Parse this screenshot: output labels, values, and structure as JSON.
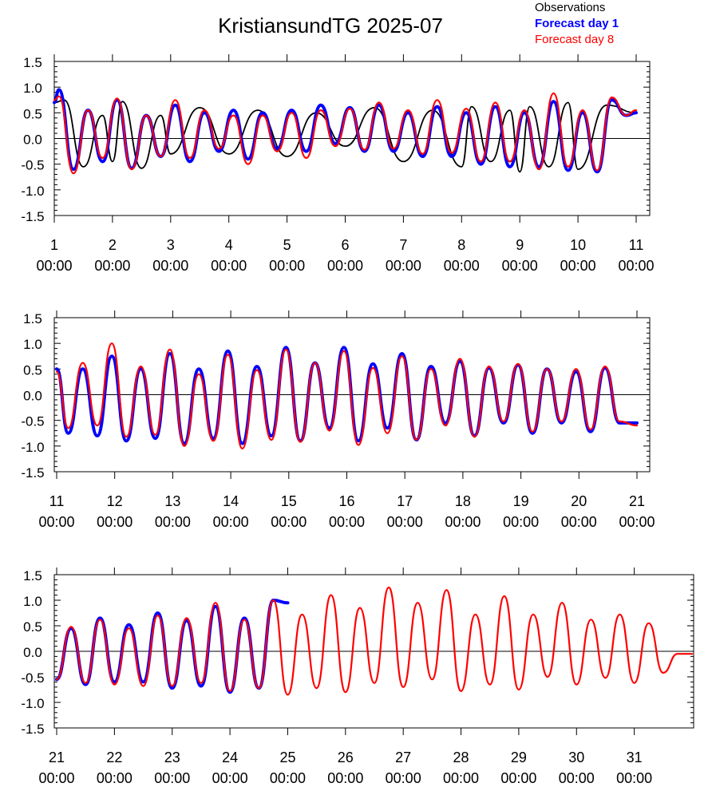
{
  "title": "KristiansundTG 2025-07",
  "legend": [
    {
      "label": "Observations",
      "color": "#000000",
      "bold": false
    },
    {
      "label": "Forecast day 1",
      "color": "#0000ff",
      "bold": true
    },
    {
      "label": "Forecast day 8",
      "color": "#ff0000",
      "bold": false
    }
  ],
  "time_label": "00:00",
  "chart_data": [
    {
      "type": "line",
      "title": "",
      "xlabel": "",
      "ylabel": "",
      "xlim": [
        1,
        11
      ],
      "ylim": [
        -1.5,
        1.5
      ],
      "y_ticks": [
        "1.5",
        "1.0",
        "0.5",
        "0.0",
        "-0.5",
        "-1.0",
        "-1.5"
      ],
      "x_tick_days": [
        "1",
        "2",
        "3",
        "4",
        "5",
        "6",
        "7",
        "8",
        "9",
        "10",
        "11"
      ],
      "zero_line": true,
      "series": [
        {
          "name": "Observations",
          "color": "#000000",
          "x": [
            1.0,
            1.17,
            1.5,
            1.83,
            2.0,
            2.17,
            2.5,
            2.83,
            3.0,
            3.5,
            4.0,
            4.5,
            5.0,
            5.5,
            6.0,
            6.5,
            7.0,
            7.5,
            8.0,
            8.17,
            8.5,
            8.83,
            9.0,
            9.17,
            9.5,
            9.83,
            10.0,
            10.5,
            11.0
          ],
          "y": [
            0.7,
            0.75,
            -0.55,
            0.45,
            -0.45,
            0.72,
            -0.58,
            0.45,
            -0.3,
            0.6,
            -0.3,
            0.55,
            -0.35,
            0.5,
            -0.15,
            0.6,
            -0.45,
            0.55,
            -0.55,
            0.62,
            -0.45,
            0.55,
            -0.65,
            0.62,
            -0.55,
            0.7,
            -0.6,
            0.65,
            0.5
          ]
        },
        {
          "name": "Forecast day 1",
          "color": "#0000ff",
          "x": [
            1.0,
            1.08,
            1.33,
            1.58,
            1.83,
            2.08,
            2.33,
            2.58,
            2.83,
            3.08,
            3.33,
            3.58,
            3.83,
            4.08,
            4.33,
            4.58,
            4.83,
            5.08,
            5.33,
            5.58,
            5.83,
            6.08,
            6.33,
            6.58,
            6.83,
            7.08,
            7.33,
            7.58,
            7.83,
            8.08,
            8.33,
            8.58,
            8.83,
            9.08,
            9.33,
            9.58,
            9.83,
            10.08,
            10.33,
            10.58,
            10.83,
            11.0
          ],
          "y": [
            0.7,
            0.95,
            -0.6,
            0.55,
            -0.45,
            0.75,
            -0.58,
            0.45,
            -0.35,
            0.65,
            -0.45,
            0.5,
            -0.25,
            0.55,
            -0.4,
            0.5,
            -0.2,
            0.55,
            -0.25,
            0.65,
            -0.1,
            0.6,
            -0.25,
            0.65,
            -0.25,
            0.5,
            -0.35,
            0.62,
            -0.35,
            0.5,
            -0.5,
            0.62,
            -0.55,
            0.5,
            -0.55,
            0.72,
            -0.62,
            0.5,
            -0.65,
            0.75,
            0.45,
            0.5
          ]
        },
        {
          "name": "Forecast day 8",
          "color": "#ff0000",
          "x": [
            1.0,
            1.08,
            1.33,
            1.58,
            1.83,
            2.08,
            2.33,
            2.58,
            2.83,
            3.08,
            3.33,
            3.58,
            3.83,
            4.08,
            4.33,
            4.58,
            4.83,
            5.08,
            5.33,
            5.58,
            5.83,
            6.08,
            6.33,
            6.58,
            6.83,
            7.08,
            7.33,
            7.58,
            7.83,
            8.08,
            8.33,
            8.58,
            8.83,
            9.08,
            9.33,
            9.58,
            9.83,
            10.08,
            10.33,
            10.58,
            10.83,
            11.0
          ],
          "y": [
            0.75,
            0.82,
            -0.68,
            0.55,
            -0.38,
            0.78,
            -0.6,
            0.45,
            -0.35,
            0.75,
            -0.38,
            0.55,
            -0.2,
            0.45,
            -0.5,
            0.45,
            -0.25,
            0.5,
            -0.38,
            0.55,
            -0.15,
            0.58,
            -0.22,
            0.7,
            -0.2,
            0.55,
            -0.3,
            0.75,
            -0.28,
            0.58,
            -0.45,
            0.7,
            -0.45,
            0.55,
            -0.6,
            0.88,
            -0.55,
            0.55,
            -0.62,
            0.8,
            0.45,
            0.55
          ]
        }
      ]
    },
    {
      "type": "line",
      "title": "",
      "xlabel": "",
      "ylabel": "",
      "xlim": [
        11,
        21
      ],
      "ylim": [
        -1.5,
        1.5
      ],
      "y_ticks": [
        "1.5",
        "1.0",
        "0.5",
        "0.0",
        "-0.5",
        "-1.0",
        "-1.5"
      ],
      "x_tick_days": [
        "11",
        "12",
        "13",
        "14",
        "15",
        "16",
        "17",
        "18",
        "19",
        "20",
        "21"
      ],
      "zero_line": true,
      "series": [
        {
          "name": "Forecast day 1",
          "color": "#0000ff",
          "x": [
            11.0,
            11.2,
            11.45,
            11.7,
            11.95,
            12.2,
            12.45,
            12.7,
            12.95,
            13.2,
            13.45,
            13.7,
            13.95,
            14.2,
            14.45,
            14.7,
            14.95,
            15.2,
            15.45,
            15.7,
            15.95,
            16.2,
            16.45,
            16.7,
            16.95,
            17.2,
            17.45,
            17.7,
            17.95,
            18.2,
            18.45,
            18.7,
            18.95,
            19.2,
            19.45,
            19.7,
            19.95,
            20.2,
            20.45,
            20.7,
            21.0
          ],
          "y": [
            0.5,
            -0.75,
            0.5,
            -0.8,
            0.75,
            -0.9,
            0.5,
            -0.85,
            0.8,
            -0.95,
            0.5,
            -0.85,
            0.85,
            -0.95,
            0.55,
            -0.8,
            0.92,
            -0.9,
            0.62,
            -0.65,
            0.92,
            -0.9,
            0.6,
            -0.65,
            0.8,
            -0.88,
            0.55,
            -0.55,
            0.65,
            -0.8,
            0.52,
            -0.55,
            0.58,
            -0.75,
            0.5,
            -0.55,
            0.45,
            -0.72,
            0.52,
            -0.55,
            -0.55
          ]
        },
        {
          "name": "Forecast day 8",
          "color": "#ff0000",
          "x": [
            11.0,
            11.2,
            11.45,
            11.7,
            11.95,
            12.2,
            12.45,
            12.7,
            12.95,
            13.2,
            13.45,
            13.7,
            13.95,
            14.2,
            14.45,
            14.7,
            14.95,
            15.2,
            15.45,
            15.7,
            15.95,
            16.2,
            16.45,
            16.7,
            16.95,
            17.2,
            17.45,
            17.7,
            17.95,
            18.2,
            18.45,
            18.7,
            18.95,
            19.2,
            19.45,
            19.7,
            19.95,
            20.2,
            20.45,
            20.7,
            21.0
          ],
          "y": [
            0.45,
            -0.65,
            0.62,
            -0.6,
            1.0,
            -0.82,
            0.55,
            -0.78,
            0.88,
            -1.0,
            0.4,
            -0.9,
            0.78,
            -1.05,
            0.48,
            -0.88,
            0.88,
            -0.92,
            0.62,
            -0.7,
            0.85,
            -0.98,
            0.52,
            -0.75,
            0.75,
            -0.88,
            0.5,
            -0.6,
            0.7,
            -0.82,
            0.55,
            -0.52,
            0.6,
            -0.72,
            0.5,
            -0.52,
            0.5,
            -0.68,
            0.55,
            -0.52,
            -0.6
          ]
        }
      ]
    },
    {
      "type": "line",
      "title": "",
      "xlabel": "",
      "ylabel": "",
      "xlim": [
        21,
        32
      ],
      "ylim": [
        -1.5,
        1.5
      ],
      "y_ticks": [
        "1.5",
        "1.0",
        "0.5",
        "0.0",
        "-0.5",
        "-1.0",
        "-1.5"
      ],
      "x_tick_days": [
        "21",
        "22",
        "23",
        "24",
        "25",
        "26",
        "27",
        "28",
        "29",
        "30",
        "31"
      ],
      "zero_line": true,
      "series": [
        {
          "name": "Forecast day 1",
          "color": "#0000ff",
          "x": [
            21.0,
            21.25,
            21.5,
            21.75,
            22.0,
            22.25,
            22.5,
            22.75,
            23.0,
            23.25,
            23.5,
            23.75,
            24.0,
            24.25,
            24.5,
            24.75,
            25.0
          ],
          "y": [
            -0.55,
            0.45,
            -0.65,
            0.65,
            -0.6,
            0.52,
            -0.6,
            0.75,
            -0.72,
            0.6,
            -0.68,
            0.88,
            -0.8,
            0.65,
            -0.72,
            1.0,
            0.95
          ]
        },
        {
          "name": "Forecast day 8",
          "color": "#ff0000",
          "x": [
            21.0,
            21.25,
            21.5,
            21.75,
            22.0,
            22.25,
            22.5,
            22.75,
            23.0,
            23.25,
            23.5,
            23.75,
            24.0,
            24.25,
            24.5,
            24.75,
            25.0,
            25.25,
            25.5,
            25.75,
            26.0,
            26.25,
            26.5,
            26.75,
            27.0,
            27.25,
            27.5,
            27.75,
            28.0,
            28.25,
            28.5,
            28.75,
            29.0,
            29.25,
            29.5,
            29.75,
            30.0,
            30.25,
            30.5,
            30.75,
            31.0,
            31.25,
            31.5,
            31.75,
            32.0
          ],
          "y": [
            -0.55,
            0.48,
            -0.62,
            0.62,
            -0.65,
            0.45,
            -0.68,
            0.7,
            -0.68,
            0.65,
            -0.62,
            0.95,
            -0.78,
            0.62,
            -0.72,
            1.0,
            -0.85,
            0.72,
            -0.72,
            1.1,
            -0.8,
            0.85,
            -0.62,
            1.25,
            -0.7,
            0.95,
            -0.55,
            1.2,
            -0.78,
            0.72,
            -0.65,
            1.08,
            -0.75,
            0.72,
            -0.5,
            0.95,
            -0.65,
            0.62,
            -0.52,
            0.72,
            -0.62,
            0.55,
            -0.42,
            -0.05,
            -0.05
          ]
        }
      ]
    }
  ]
}
